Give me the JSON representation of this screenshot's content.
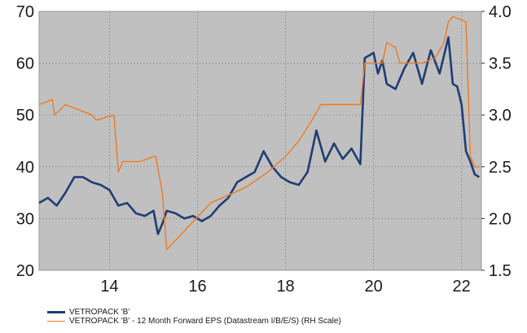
{
  "chart_data": {
    "type": "line",
    "title": "",
    "xlabel": "",
    "ylabel": "",
    "xlim": [
      2012.4,
      2022.45
    ],
    "x_ticks": [
      "14",
      "16",
      "18",
      "20",
      "22"
    ],
    "x_tick_values": [
      2014,
      2016,
      2018,
      2020,
      2022
    ],
    "ylim_left": [
      20,
      70
    ],
    "y_ticks_left": [
      "20",
      "30",
      "40",
      "50",
      "60",
      "70"
    ],
    "ylim_right": [
      1.5,
      4.0
    ],
    "y_ticks_right": [
      "1.5",
      "2.0",
      "2.5",
      "3.0",
      "3.5",
      "4.0"
    ],
    "grid": true,
    "plot_background": "#c0c0c0",
    "legend_position": "bottom-left",
    "series": [
      {
        "name": "VETROPACK 'B'",
        "axis": "left",
        "color": "#1f3d73",
        "x": [
          2012.4,
          2012.6,
          2012.8,
          2013.0,
          2013.2,
          2013.4,
          2013.6,
          2013.8,
          2014.0,
          2014.2,
          2014.4,
          2014.6,
          2014.8,
          2015.0,
          2015.1,
          2015.2,
          2015.3,
          2015.5,
          2015.7,
          2015.9,
          2016.1,
          2016.3,
          2016.5,
          2016.7,
          2016.9,
          2017.1,
          2017.3,
          2017.5,
          2017.7,
          2017.9,
          2018.1,
          2018.3,
          2018.5,
          2018.7,
          2018.8,
          2018.9,
          2019.1,
          2019.3,
          2019.5,
          2019.6,
          2019.7,
          2019.8,
          2019.9,
          2020.0,
          2020.1,
          2020.2,
          2020.3,
          2020.5,
          2020.7,
          2020.9,
          2021.1,
          2021.3,
          2021.5,
          2021.7,
          2021.8,
          2021.9,
          2022.0,
          2022.1,
          2022.2,
          2022.3,
          2022.4
        ],
        "y": [
          33.0,
          34.0,
          32.5,
          35.0,
          38.0,
          38.0,
          37.0,
          36.5,
          35.5,
          32.5,
          33.0,
          31.0,
          30.5,
          31.5,
          27.0,
          29.0,
          31.5,
          31.0,
          30.0,
          30.5,
          29.5,
          30.5,
          32.5,
          34.0,
          37.0,
          38.0,
          39.0,
          43.0,
          40.0,
          38.0,
          37.0,
          36.5,
          39.0,
          47.0,
          44.0,
          41.0,
          44.5,
          41.5,
          43.5,
          42.0,
          40.5,
          61.0,
          61.5,
          62.0,
          58.0,
          60.5,
          56.0,
          55.0,
          59.0,
          62.0,
          56.0,
          62.5,
          58.0,
          65.0,
          56.0,
          55.5,
          52.0,
          43.0,
          41.0,
          38.5,
          38.0
        ]
      },
      {
        "name": "VETROPACK 'B' - 12 Month Forward EPS (Datastream I/B/E/S) (RH Scale)",
        "axis": "right",
        "color": "#f07a20",
        "x": [
          2012.4,
          2012.7,
          2012.75,
          2013.0,
          2013.6,
          2013.7,
          2014.1,
          2014.2,
          2014.3,
          2014.7,
          2015.0,
          2015.05,
          2015.2,
          2015.3,
          2016.3,
          2017.1,
          2017.6,
          2018.0,
          2018.3,
          2018.6,
          2018.8,
          2019.2,
          2019.7,
          2019.8,
          2020.0,
          2020.2,
          2020.3,
          2020.5,
          2020.6,
          2021.1,
          2021.4,
          2021.6,
          2021.7,
          2021.8,
          2022.1,
          2022.2,
          2022.3,
          2022.4
        ],
        "y": [
          3.1,
          3.15,
          3.0,
          3.1,
          3.0,
          2.95,
          3.0,
          2.45,
          2.55,
          2.55,
          2.6,
          2.6,
          2.25,
          1.7,
          2.15,
          2.3,
          2.45,
          2.6,
          2.75,
          2.95,
          3.1,
          3.1,
          3.1,
          3.5,
          3.5,
          3.5,
          3.7,
          3.65,
          3.5,
          3.5,
          3.55,
          3.7,
          3.9,
          3.95,
          3.9,
          2.6,
          2.5,
          2.5
        ]
      }
    ]
  }
}
